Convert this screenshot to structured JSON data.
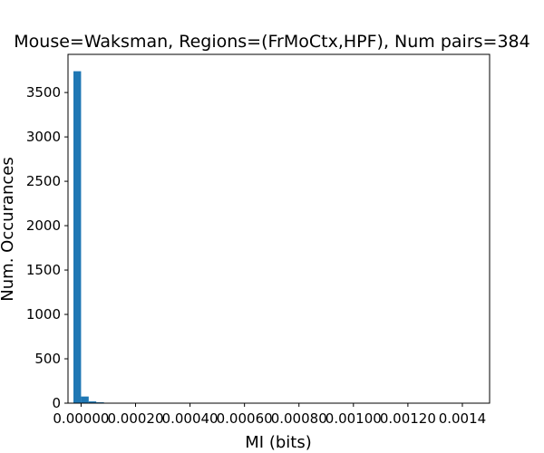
{
  "chart_data": {
    "type": "bar",
    "title": "Mouse=Waksman, Regions=(FrMoCtx,HPF), Num pairs=384",
    "xlabel": "MI (bits)",
    "ylabel": "Num. Occurances",
    "xlim": [
      -4.8e-05,
      0.0015
    ],
    "ylim": [
      0,
      3930
    ],
    "xticks": [
      "0.00000",
      "0.00020",
      "0.00040",
      "0.00060",
      "0.00080",
      "0.00100",
      "0.00120",
      "0.0014"
    ],
    "xtick_values": [
      0.0,
      0.0002,
      0.0004,
      0.0006,
      0.0008,
      0.001,
      0.0012,
      0.0014
    ],
    "yticks": [
      "0",
      "500",
      "1000",
      "1500",
      "2000",
      "2500",
      "3000",
      "3500"
    ],
    "ytick_values": [
      0,
      500,
      1000,
      1500,
      2000,
      2500,
      3000,
      3500
    ],
    "bin_edges": [
      -2.8e-05,
      0.0,
      2.8e-05,
      5.6e-05,
      8.4e-05,
      0.000112,
      0.00014
    ],
    "values": [
      3740,
      75,
      20,
      10,
      5,
      3
    ],
    "color": "#1f77b4",
    "grid": false
  }
}
